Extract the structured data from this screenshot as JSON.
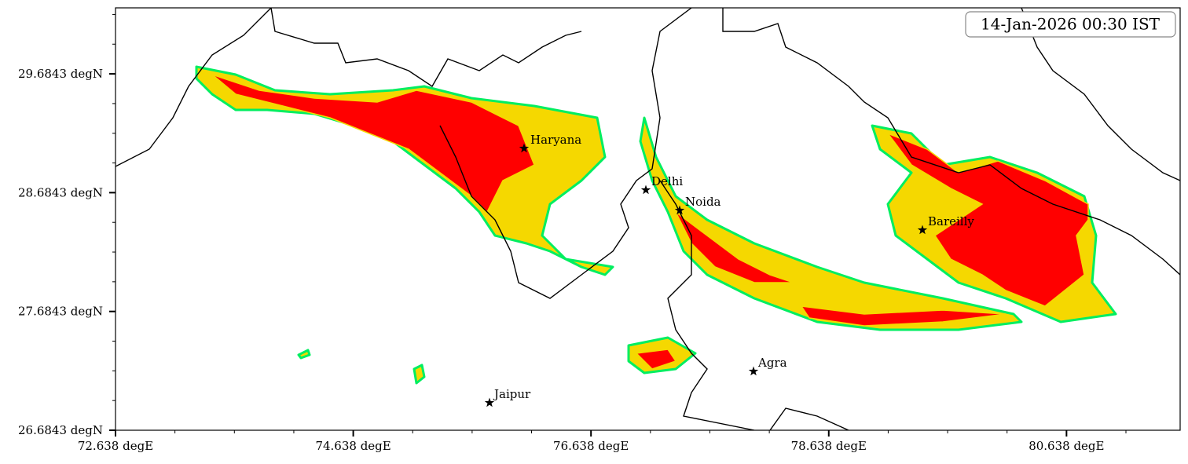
{
  "map": {
    "timestamp": "14-Jan-2026 00:30 IST",
    "xlim": [
      72.638,
      81.594
    ],
    "ylim": [
      26.6843,
      30.24
    ],
    "xticks": [
      {
        "value": 72.638,
        "label": "72.638 degE"
      },
      {
        "value": 74.638,
        "label": "74.638 degE"
      },
      {
        "value": 76.638,
        "label": "76.638 degE"
      },
      {
        "value": 78.638,
        "label": "78.638 degE"
      },
      {
        "value": 80.638,
        "label": "80.638 degE"
      }
    ],
    "yticks": [
      {
        "value": 26.6843,
        "label": "26.6843 degN"
      },
      {
        "value": 27.6843,
        "label": "27.6843 degN"
      },
      {
        "value": 28.6843,
        "label": "28.6843 degN"
      },
      {
        "value": 29.6843,
        "label": "29.6843 degN"
      }
    ],
    "cities": [
      "Haryana",
      "Delhi",
      "Noida",
      "Bareilly",
      "Agra",
      "Jaipur"
    ]
  }
}
